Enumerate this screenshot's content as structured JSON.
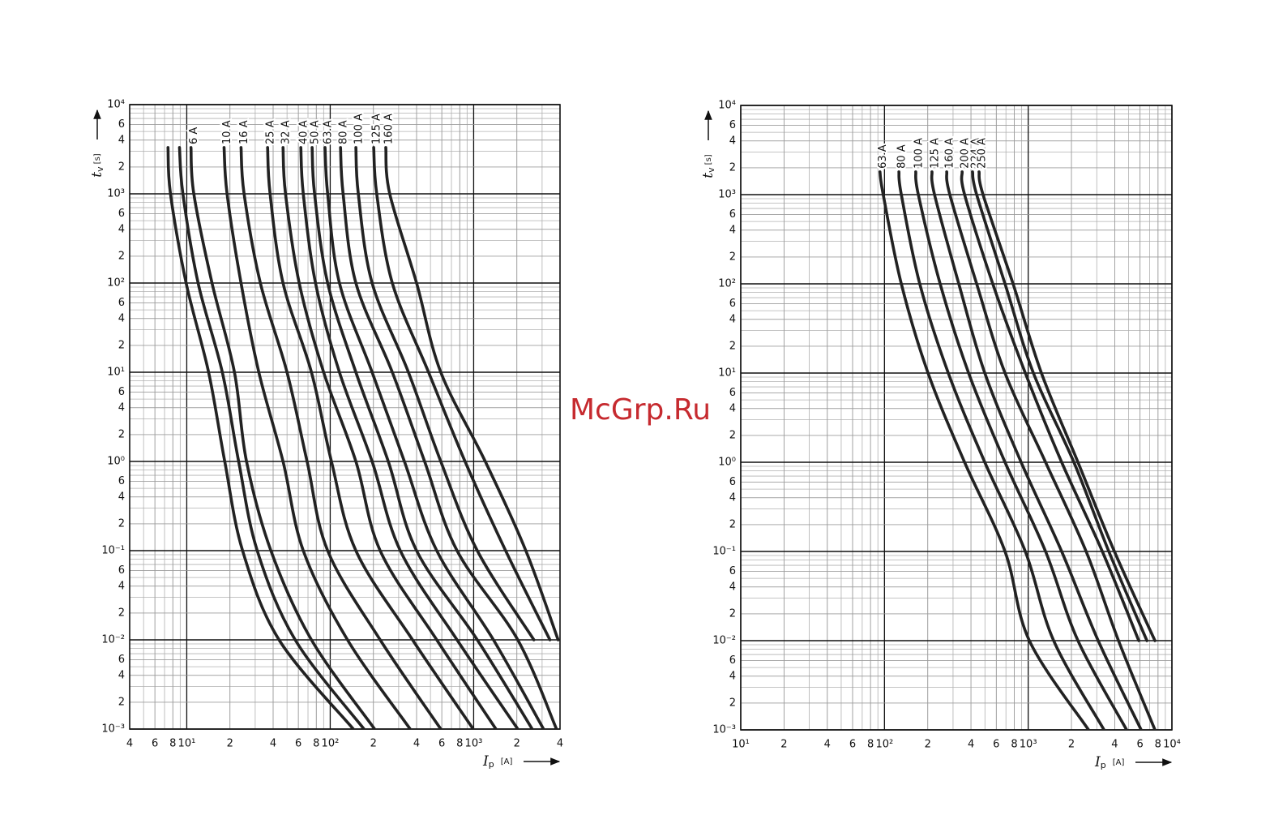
{
  "watermark": "McGrp.Ru",
  "chart_data": [
    {
      "type": "line",
      "x_scale": "log",
      "y_scale": "log",
      "grid": true,
      "minor_grid": true,
      "color": "#222222",
      "x_label": "I",
      "x_label_sub": "p",
      "x_label_unit": "[A]",
      "y_label": "t",
      "y_label_sub": "v",
      "y_label_unit": "[s]",
      "xlim": [
        4,
        4000
      ],
      "ylim": [
        0.001,
        10000
      ],
      "xticks": [
        4,
        6,
        8,
        {
          "value": 10,
          "label": "10¹"
        },
        {
          "value": 20,
          "label": "2"
        },
        {
          "value": 40,
          "label": "4"
        },
        {
          "value": 60,
          "label": "6"
        },
        {
          "value": 80,
          "label": "8"
        },
        {
          "value": 100,
          "label": "10²"
        },
        {
          "value": 200,
          "label": "2"
        },
        {
          "value": 400,
          "label": "4"
        },
        {
          "value": 600,
          "label": "6"
        },
        {
          "value": 800,
          "label": "8"
        },
        {
          "value": 1000,
          "label": "10³"
        },
        {
          "value": 2000,
          "label": "2"
        },
        {
          "value": 4000,
          "label": "4"
        }
      ],
      "yticks": [
        {
          "value": 0.001,
          "label": "10⁻³"
        },
        {
          "value": 0.002,
          "label": "2"
        },
        {
          "value": 0.004,
          "label": "4"
        },
        {
          "value": 0.006,
          "label": "6"
        },
        {
          "value": 0.01,
          "label": "10⁻²"
        },
        {
          "value": 0.02,
          "label": "2"
        },
        {
          "value": 0.04,
          "label": "4"
        },
        {
          "value": 0.06,
          "label": "6"
        },
        {
          "value": 0.1,
          "label": "10⁻¹"
        },
        {
          "value": 0.2,
          "label": "2"
        },
        {
          "value": 0.4,
          "label": "4"
        },
        {
          "value": 0.6,
          "label": "6"
        },
        {
          "value": 1,
          "label": "10⁰"
        },
        2,
        4,
        6,
        {
          "value": 10,
          "label": "10¹"
        },
        {
          "value": 20,
          "label": "2"
        },
        {
          "value": 40,
          "label": "4"
        },
        {
          "value": 60,
          "label": "6"
        },
        {
          "value": 100,
          "label": "10²"
        },
        {
          "value": 200,
          "label": "2"
        },
        {
          "value": 400,
          "label": "4"
        },
        {
          "value": 600,
          "label": "6"
        },
        {
          "value": 1000,
          "label": "10³"
        },
        {
          "value": 2000,
          "label": "2"
        },
        {
          "value": 4000,
          "label": "4"
        },
        {
          "value": 6000,
          "label": "6"
        },
        {
          "value": 10000,
          "label": "10⁴"
        }
      ],
      "series": [
        {
          "name": null,
          "x": [
            7.4,
            7.7,
            9.9,
            14.2,
            18.4,
            24.5,
            44,
            145
          ],
          "values": [
            3300,
            1000,
            100,
            10,
            1,
            0.1,
            0.01,
            0.001
          ]
        },
        {
          "name": null,
          "x": [
            8.9,
            9.4,
            12,
            17.7,
            23,
            31,
            57,
            172
          ],
          "values": [
            3300,
            1000,
            100,
            10,
            1,
            0.1,
            0.01,
            0.001
          ]
        },
        {
          "name": "6 A",
          "x": [
            10.7,
            11.2,
            15,
            21.5,
            26.1,
            38.6,
            74,
            204
          ],
          "values": [
            3300,
            1000,
            100,
            10,
            1,
            0.1,
            0.01,
            0.001
          ]
        },
        {
          "name": "10 A",
          "x": [
            18.2,
            19.1,
            23.9,
            31.8,
            46.9,
            64.9,
            132,
            361
          ],
          "values": [
            3300,
            1000,
            100,
            10,
            1,
            0.1,
            0.01,
            0.001
          ]
        },
        {
          "name": "16 A",
          "x": [
            23.9,
            25.1,
            32.6,
            50,
            69,
            96,
            223,
            590
          ],
          "values": [
            3300,
            1000,
            100,
            10,
            1,
            0.1,
            0.01,
            0.001
          ]
        },
        {
          "name": "25 A",
          "x": [
            36.6,
            38.1,
            46.9,
            74,
            102,
            151,
            375,
            993
          ],
          "values": [
            3300,
            1000,
            100,
            10,
            1,
            0.1,
            0.01,
            0.001
          ]
        },
        {
          "name": "32 A",
          "x": [
            46.9,
            48.8,
            60.8,
            90,
            151,
            223,
            553,
            1430
          ],
          "values": [
            3300,
            1000,
            100,
            10,
            1,
            0.1,
            0.01,
            0.001
          ]
        },
        {
          "name": "40 A",
          "x": [
            62.4,
            64.9,
            79,
            116,
            196,
            308,
            766,
            2030
          ],
          "values": [
            3300,
            1000,
            100,
            10,
            1,
            0.1,
            0.01,
            0.001
          ]
        },
        {
          "name": "50 A",
          "x": [
            74.8,
            77.8,
            96,
            151,
            254,
            400,
            1060,
            2560
          ],
          "values": [
            3300,
            1000,
            100,
            10,
            1,
            0.1,
            0.01,
            0.001
          ]
        },
        {
          "name": "63 A",
          "x": [
            92,
            96,
            116,
            196,
            329,
            553,
            1374,
            3070
          ],
          "values": [
            3300,
            1000,
            100,
            10,
            1,
            0.1,
            0.01,
            0.001
          ]
        },
        {
          "name": "80 A",
          "x": [
            118,
            123,
            151,
            271,
            455,
            766,
            2030,
            3780
          ],
          "values": [
            3300,
            1000,
            100,
            10,
            1,
            0.1,
            0.01,
            0.001
          ]
        },
        {
          "name": "100 A",
          "x": [
            151,
            157,
            196,
            351,
            590,
            1060,
            2630
          ],
          "values": [
            3300,
            1000,
            100,
            10,
            1,
            0.1,
            0.01
          ]
        },
        {
          "name": "125 A",
          "x": [
            201,
            211,
            271,
            485,
            871,
            1670,
            3400
          ],
          "values": [
            3300,
            1000,
            100,
            10,
            1,
            0.1,
            0.01
          ]
        },
        {
          "name": "160 A",
          "x": [
            244,
            260,
            400,
            590,
            1205,
            2310,
            3880
          ],
          "values": [
            3300,
            1000,
            100,
            10,
            1,
            0.1,
            0.01
          ]
        }
      ]
    },
    {
      "type": "line",
      "x_scale": "log",
      "y_scale": "log",
      "grid": true,
      "minor_grid": true,
      "color": "#222222",
      "x_label": "I",
      "x_label_sub": "p",
      "x_label_unit": "[A]",
      "y_label": "t",
      "y_label_sub": "v",
      "y_label_unit": "[s]",
      "xlim": [
        10,
        10000
      ],
      "ylim": [
        0.001,
        10000
      ],
      "xticks": [
        {
          "value": 10,
          "label": "10¹"
        },
        {
          "value": 20,
          "label": "2"
        },
        {
          "value": 40,
          "label": "4"
        },
        {
          "value": 60,
          "label": "6"
        },
        {
          "value": 80,
          "label": "8"
        },
        {
          "value": 100,
          "label": "10²"
        },
        {
          "value": 200,
          "label": "2"
        },
        {
          "value": 400,
          "label": "4"
        },
        {
          "value": 600,
          "label": "6"
        },
        {
          "value": 800,
          "label": "8"
        },
        {
          "value": 1000,
          "label": "10³"
        },
        {
          "value": 2000,
          "label": "2"
        },
        {
          "value": 4000,
          "label": "4"
        },
        {
          "value": 6000,
          "label": "6"
        },
        {
          "value": 8000,
          "label": "8"
        },
        {
          "value": 10000,
          "label": "10⁴"
        }
      ],
      "yticks": [
        {
          "value": 0.001,
          "label": "10⁻³"
        },
        {
          "value": 0.002,
          "label": "2"
        },
        {
          "value": 0.004,
          "label": "4"
        },
        {
          "value": 0.006,
          "label": "6"
        },
        {
          "value": 0.01,
          "label": "10⁻²"
        },
        {
          "value": 0.02,
          "label": "2"
        },
        {
          "value": 0.04,
          "label": "4"
        },
        {
          "value": 0.06,
          "label": "6"
        },
        {
          "value": 0.1,
          "label": "10⁻¹"
        },
        {
          "value": 0.2,
          "label": "2"
        },
        {
          "value": 0.4,
          "label": "4"
        },
        {
          "value": 0.6,
          "label": "6"
        },
        {
          "value": 1,
          "label": "10⁰"
        },
        2,
        4,
        6,
        {
          "value": 10,
          "label": "10¹"
        },
        {
          "value": 20,
          "label": "2"
        },
        {
          "value": 40,
          "label": "4"
        },
        {
          "value": 60,
          "label": "6"
        },
        {
          "value": 100,
          "label": "10²"
        },
        {
          "value": 200,
          "label": "2"
        },
        {
          "value": 400,
          "label": "4"
        },
        {
          "value": 600,
          "label": "6"
        },
        {
          "value": 1000,
          "label": "10³"
        },
        {
          "value": 2000,
          "label": "2"
        },
        {
          "value": 4000,
          "label": "4"
        },
        {
          "value": 6000,
          "label": "6"
        },
        {
          "value": 10000,
          "label": "10⁴"
        }
      ],
      "series": [
        {
          "name": "63 A",
          "x": [
            93,
            98,
            131,
            201,
            361,
            690,
            1019,
            2630
          ],
          "values": [
            1800,
            1000,
            100,
            10,
            1,
            0.1,
            0.01,
            0.001
          ]
        },
        {
          "name": "80 A",
          "x": [
            126,
            131,
            176,
            278,
            499,
            955,
            1504,
            3370
          ],
          "values": [
            1800,
            1000,
            100,
            10,
            1,
            0.1,
            0.01,
            0.001
          ]
        },
        {
          "name": "100 A",
          "x": [
            165,
            172,
            244,
            385,
            690,
            1321,
            2220,
            4840
          ],
          "values": [
            1800,
            1000,
            100,
            10,
            1,
            0.1,
            0.01,
            0.001
          ]
        },
        {
          "name": "125 A",
          "x": [
            214,
            223,
            329,
            499,
            893,
            1710,
            3070,
            6110
          ],
          "values": [
            1800,
            1000,
            100,
            10,
            1,
            0.1,
            0.01,
            0.001
          ]
        },
        {
          "name": "160 A",
          "x": [
            271,
            285,
            438,
            690,
            1321,
            2530,
            4250,
            7620
          ],
          "values": [
            1800,
            1000,
            100,
            10,
            1,
            0.1,
            0.01,
            0.001
          ]
        },
        {
          "name": "200 A",
          "x": [
            347,
            361,
            567,
            955,
            1710,
            3280,
            5880
          ],
          "values": [
            1800,
            1000,
            100,
            10,
            1,
            0.1,
            0.01
          ]
        },
        {
          "name": "224 A",
          "x": [
            410,
            438,
            690,
            1087,
            2080,
            3640,
            6700
          ],
          "values": [
            1800,
            1000,
            100,
            10,
            1,
            0.1,
            0.01
          ]
        },
        {
          "name": "250 A",
          "x": [
            455,
            485,
            785,
            1236,
            2220,
            3980,
            7620
          ],
          "values": [
            1800,
            1000,
            100,
            10,
            1,
            0.1,
            0.01
          ]
        }
      ]
    }
  ]
}
